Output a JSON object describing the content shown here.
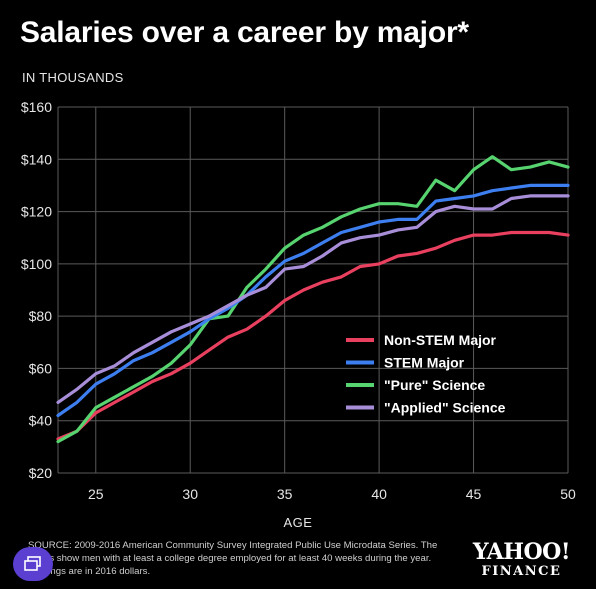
{
  "header": {
    "title": "Salaries over a career by major*",
    "subtitle": "IN THOUSANDS"
  },
  "footer": {
    "source": "SOURCE: 2009-2016 American Community Survey Integrated Public Use Microdata Series. The charts show men with at least a college degree employed for at least 40 weeks during the year. Earnings are in 2016 dollars.",
    "brand_name": "YAHOO!",
    "brand_sub": "FINANCE"
  },
  "badge_icon": "stack-icon",
  "chart_data": {
    "type": "line",
    "title": "Salaries over a career by major*",
    "subtitle": "IN THOUSANDS",
    "xlabel": "AGE",
    "ylabel": "",
    "xlim": [
      23,
      50
    ],
    "ylim": [
      20,
      160
    ],
    "xticks": [
      25,
      30,
      35,
      40,
      45,
      50
    ],
    "yticks": [
      20,
      40,
      60,
      80,
      100,
      120,
      140,
      160
    ],
    "ytick_labels": [
      "$20",
      "$40",
      "$60",
      "$80",
      "$100",
      "$120",
      "$140",
      "$160"
    ],
    "grid": true,
    "legend_position": "right",
    "x": [
      23,
      24,
      25,
      26,
      27,
      28,
      29,
      30,
      31,
      32,
      33,
      34,
      35,
      36,
      37,
      38,
      39,
      40,
      41,
      42,
      43,
      44,
      45,
      46,
      47,
      48,
      49,
      50
    ],
    "series": [
      {
        "name": "Non-STEM Major",
        "color": "#e8405e",
        "values": [
          33,
          36,
          43,
          47,
          51,
          55,
          58,
          62,
          67,
          72,
          75,
          80,
          86,
          90,
          93,
          95,
          99,
          100,
          103,
          104,
          106,
          109,
          111,
          111,
          112,
          112,
          112,
          111
        ]
      },
      {
        "name": "STEM Major",
        "color": "#3d7ff0",
        "values": [
          42,
          47,
          54,
          58,
          63,
          66,
          70,
          74,
          79,
          83,
          88,
          95,
          101,
          104,
          108,
          112,
          114,
          116,
          117,
          117,
          124,
          125,
          126,
          128,
          129,
          130,
          130,
          130
        ]
      },
      {
        "name": "\"Pure\" Science",
        "color": "#57d36f",
        "values": [
          32,
          36,
          45,
          49,
          53,
          57,
          62,
          69,
          79,
          80,
          91,
          98,
          106,
          111,
          114,
          118,
          121,
          123,
          123,
          122,
          132,
          128,
          136,
          141,
          136,
          137,
          139,
          137
        ]
      },
      {
        "name": "\"Applied\" Science",
        "color": "#a88ed9",
        "values": [
          47,
          52,
          58,
          61,
          66,
          70,
          74,
          77,
          80,
          84,
          88,
          91,
          98,
          99,
          103,
          108,
          110,
          111,
          113,
          114,
          120,
          122,
          121,
          121,
          125,
          126,
          126,
          126
        ]
      }
    ]
  }
}
